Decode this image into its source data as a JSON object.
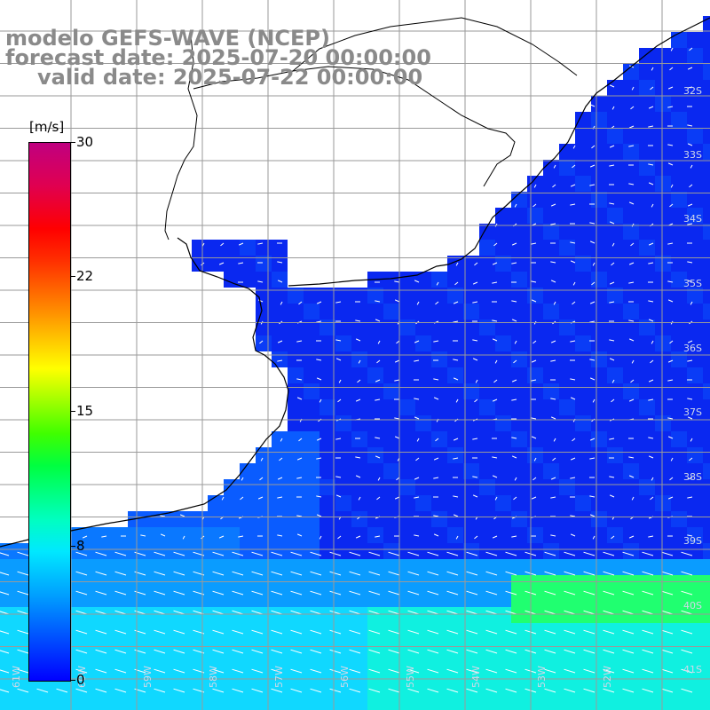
{
  "title": {
    "line1": "modelo GEFS-WAVE (NCEP)",
    "line2": "forecast date: 2025-07-20 00:00:00",
    "line3": "valid date: 2025-07-22 00:00:00"
  },
  "legend": {
    "unit": "[m/s]",
    "ticks": [
      "30",
      "22",
      "15",
      "8",
      "0"
    ],
    "colors": [
      "#0000ff",
      "#00a0ff",
      "#00ffe0",
      "#00ff40",
      "#ffff00",
      "#ff8000",
      "#ff0000",
      "#c00080"
    ]
  },
  "latitude_labels": [
    "32S",
    "33S",
    "34S",
    "35S",
    "36S",
    "37S",
    "38S",
    "39S",
    "40S",
    "41S"
  ],
  "longitude_labels": [
    "61W",
    "60W",
    "59W",
    "58W",
    "57W",
    "56W",
    "55W",
    "54W",
    "53W",
    "52W"
  ],
  "map": {
    "field": "wind speed and direction",
    "ocean_low_color": "#0a28f0",
    "ocean_mid_color": "#0a8cff",
    "ocean_high_color": "#10ffd0",
    "land_color": "#ffffff",
    "coast_color": "#000000",
    "grid_color": "#9a9a9a",
    "arrow_color": "#ffffff"
  }
}
